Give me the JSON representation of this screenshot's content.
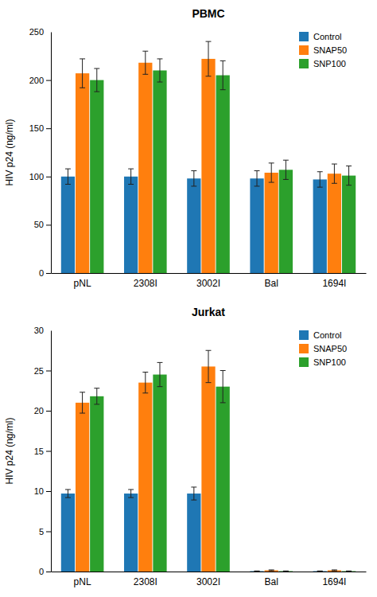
{
  "chart_data": [
    {
      "type": "bar",
      "title": "PBMC",
      "categories": [
        "pNL",
        "2308I",
        "3002I",
        "Bal",
        "1694I"
      ],
      "series": [
        {
          "name": "Control",
          "values": [
            100,
            100,
            98,
            98,
            97
          ],
          "errors": [
            8,
            8,
            8,
            8,
            8
          ]
        },
        {
          "name": "SNAP50",
          "values": [
            207,
            218,
            222,
            104,
            103
          ],
          "errors": [
            15,
            12,
            18,
            10,
            10
          ]
        },
        {
          "name": "SNP100",
          "values": [
            200,
            210,
            205,
            107,
            101
          ],
          "errors": [
            12,
            12,
            15,
            10,
            10
          ]
        }
      ],
      "y_label": "HIV p24 (ng/ml)",
      "ylim": [
        0,
        250
      ],
      "yticks": [
        0,
        50,
        100,
        150,
        200
      ],
      "annotation": "250",
      "legend": "top-right",
      "grid": false
    },
    {
      "type": "bar",
      "title": "Jurkat",
      "categories": [
        "pNL",
        "2308I",
        "3002I",
        "Bal",
        "1694I"
      ],
      "series": [
        {
          "name": "Control",
          "values": [
            9.7,
            9.7,
            9.7,
            0.05,
            0.05
          ],
          "errors": [
            0.5,
            0.5,
            0.8,
            0.02,
            0.02
          ]
        },
        {
          "name": "SNAP50",
          "values": [
            21.0,
            23.5,
            25.5,
            0.15,
            0.15
          ],
          "errors": [
            1.3,
            1.3,
            2.0,
            0.05,
            0.05
          ]
        },
        {
          "name": "SNP100",
          "values": [
            21.8,
            24.5,
            23.0,
            0.05,
            0.05
          ],
          "errors": [
            1.0,
            1.5,
            2.0,
            0.02,
            0.02
          ]
        }
      ],
      "y_label": "HIV p24 (ng/ml)",
      "ylim": [
        0,
        30
      ],
      "yticks": [
        0,
        5,
        10,
        15,
        20,
        25
      ],
      "annotation": "30",
      "legend": "top-right",
      "grid": false
    }
  ]
}
